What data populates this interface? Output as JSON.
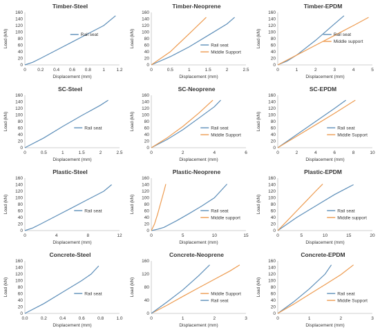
{
  "colors": {
    "rail_seat": "#5B8DB8",
    "middle_support": "#ED9A4E",
    "axis": "#bfbfbf",
    "text": "#333333"
  },
  "chart_data": [
    {
      "type": "line",
      "title": "Timber-Steel",
      "xlabel": "Displacement (mm)",
      "ylabel": "Load (kN)",
      "xlim": [
        0,
        1.2
      ],
      "ylim": [
        0,
        160
      ],
      "xticks": [
        "0",
        "0.2",
        "0.4",
        "0.6",
        "0.8",
        "1",
        "1.2"
      ],
      "yticks": [
        "0",
        "20",
        "40",
        "60",
        "80",
        "100",
        "120",
        "140",
        "160"
      ],
      "legend_position": "middle-right",
      "series": [
        {
          "name": "Rail seat",
          "color": "rail_seat",
          "x": [
            0,
            0.1,
            0.2,
            0.4,
            0.6,
            0.8,
            1.0,
            1.15
          ],
          "y": [
            0,
            8,
            20,
            45,
            70,
            95,
            120,
            150
          ]
        }
      ]
    },
    {
      "type": "line",
      "title": "Timber-Neoprene",
      "xlabel": "Displacement (mm)",
      "ylabel": "Load (kN)",
      "xlim": [
        0,
        2.5
      ],
      "ylim": [
        0,
        160
      ],
      "xticks": [
        "0",
        "0.5",
        "1",
        "1.5",
        "2",
        "2.5"
      ],
      "yticks": [
        "0",
        "20",
        "40",
        "60",
        "80",
        "100",
        "120",
        "140",
        "160"
      ],
      "legend_position": "lower-right",
      "series": [
        {
          "name": "Rail seat",
          "color": "rail_seat",
          "x": [
            0,
            0.5,
            1.0,
            1.5,
            2.0,
            2.2
          ],
          "y": [
            0,
            25,
            55,
            90,
            125,
            145
          ]
        },
        {
          "name": "Middle Support",
          "color": "middle_support",
          "x": [
            0,
            0.5,
            1.0,
            1.45
          ],
          "y": [
            0,
            40,
            95,
            145
          ]
        }
      ]
    },
    {
      "type": "line",
      "title": "Timber-EPDM",
      "xlabel": "Displacement (mm)",
      "ylabel": "Load (kN)",
      "xlim": [
        0,
        5
      ],
      "ylim": [
        0,
        160
      ],
      "xticks": [
        "0",
        "1",
        "2",
        "3",
        "4",
        "5"
      ],
      "yticks": [
        "0",
        "20",
        "40",
        "60",
        "80",
        "100",
        "120",
        "140",
        "160"
      ],
      "legend_position": "middle-right",
      "series": [
        {
          "name": "Rail seat",
          "color": "rail_seat",
          "x": [
            0,
            0.5,
            1.0,
            2.0,
            3.0,
            3.5
          ],
          "y": [
            0,
            12,
            30,
            75,
            125,
            150
          ]
        },
        {
          "name": "Middle support",
          "color": "middle_support",
          "x": [
            0,
            1,
            2,
            3,
            4,
            4.8
          ],
          "y": [
            0,
            30,
            60,
            90,
            120,
            145
          ]
        }
      ]
    },
    {
      "type": "line",
      "title": "SC-Steel",
      "xlabel": "Displacement (mm)",
      "ylabel": "Load (kN)",
      "xlim": [
        0,
        2.5
      ],
      "ylim": [
        0,
        160
      ],
      "xticks": [
        "0",
        "0.5",
        "1",
        "1.5",
        "2",
        "2.5"
      ],
      "yticks": [
        "0",
        "20",
        "40",
        "60",
        "80",
        "100",
        "120",
        "140",
        "160"
      ],
      "legend_position": "lower-right",
      "series": [
        {
          "name": "Rail seat",
          "color": "rail_seat",
          "x": [
            0,
            0.5,
            1.0,
            1.5,
            2.0,
            2.2
          ],
          "y": [
            0,
            30,
            65,
            98,
            130,
            145
          ]
        }
      ]
    },
    {
      "type": "line",
      "title": "SC-Neoprene",
      "xlabel": "Displacement (mm)",
      "ylabel": "Load (kN)",
      "xlim": [
        0,
        6
      ],
      "ylim": [
        0,
        160
      ],
      "xticks": [
        "0",
        "2",
        "4",
        "6"
      ],
      "yticks": [
        "0",
        "20",
        "40",
        "60",
        "80",
        "100",
        "120",
        "140",
        "160"
      ],
      "legend_position": "lower-right",
      "series": [
        {
          "name": "Rail seat",
          "color": "rail_seat",
          "x": [
            0,
            1,
            2,
            3,
            4,
            4.4
          ],
          "y": [
            0,
            25,
            55,
            90,
            125,
            145
          ]
        },
        {
          "name": "Middle Support",
          "color": "middle_support",
          "x": [
            0,
            1,
            2,
            3,
            3.9
          ],
          "y": [
            0,
            30,
            65,
            105,
            145
          ]
        }
      ]
    },
    {
      "type": "line",
      "title": "SC-EPDM",
      "xlabel": "Displacement (mm)",
      "ylabel": "Load (kN)",
      "xlim": [
        0,
        10
      ],
      "ylim": [
        0,
        160
      ],
      "xticks": [
        "0",
        "2",
        "4",
        "6",
        "8",
        "10"
      ],
      "yticks": [
        "0",
        "20",
        "40",
        "60",
        "80",
        "100",
        "120",
        "140",
        "160"
      ],
      "legend_position": "lower-right",
      "series": [
        {
          "name": "Rail seat",
          "color": "rail_seat",
          "x": [
            0,
            2,
            4,
            6,
            7.2
          ],
          "y": [
            0,
            40,
            80,
            120,
            145
          ]
        },
        {
          "name": "Middle Support",
          "color": "middle_support",
          "x": [
            0,
            2,
            4,
            6,
            8.2
          ],
          "y": [
            0,
            35,
            70,
            105,
            145
          ]
        }
      ]
    },
    {
      "type": "line",
      "title": "Plastic-Steel",
      "xlabel": "Displacement (mm)",
      "ylabel": "Load (kN)",
      "xlim": [
        0,
        12
      ],
      "ylim": [
        0,
        160
      ],
      "xticks": [
        "0",
        "4",
        "8",
        "12"
      ],
      "yticks": [
        "0",
        "20",
        "40",
        "60",
        "80",
        "100",
        "120",
        "140",
        "160"
      ],
      "legend_position": "lower-right",
      "series": [
        {
          "name": "Rail seat",
          "color": "rail_seat",
          "x": [
            0,
            1,
            2,
            4,
            6,
            8,
            10,
            11
          ],
          "y": [
            0,
            8,
            20,
            45,
            70,
            95,
            120,
            140
          ]
        }
      ]
    },
    {
      "type": "line",
      "title": "Plastic-Neoprene",
      "xlabel": "Displacement (mm)",
      "ylabel": "Load (kN)",
      "xlim": [
        0,
        15
      ],
      "ylim": [
        0,
        160
      ],
      "xticks": [
        "0",
        "5",
        "10",
        "15"
      ],
      "yticks": [
        "0",
        "20",
        "40",
        "60",
        "80",
        "100",
        "120",
        "140",
        "160"
      ],
      "legend_position": "lower-right",
      "series": [
        {
          "name": "Rail seat",
          "color": "rail_seat",
          "x": [
            0,
            1,
            2,
            4,
            6,
            8,
            10,
            12
          ],
          "y": [
            0,
            4,
            10,
            30,
            52,
            75,
            100,
            142
          ]
        },
        {
          "name": "Middle support",
          "color": "middle_support",
          "x": [
            0,
            0.5,
            1.0,
            1.5,
            2.0,
            2.3
          ],
          "y": [
            0,
            20,
            50,
            85,
            120,
            142
          ]
        }
      ]
    },
    {
      "type": "line",
      "title": "Plastic-EPDM",
      "xlabel": "Displacement (mm)",
      "ylabel": "Load (kN)",
      "xlim": [
        0,
        20
      ],
      "ylim": [
        0,
        160
      ],
      "xticks": [
        "0",
        "5",
        "10",
        "15",
        "20"
      ],
      "yticks": [
        "0",
        "20",
        "40",
        "60",
        "80",
        "100",
        "120",
        "140",
        "160"
      ],
      "legend_position": "lower-right",
      "series": [
        {
          "name": "Rail seat",
          "color": "rail_seat",
          "x": [
            0,
            2,
            4,
            8,
            12,
            16
          ],
          "y": [
            0,
            20,
            40,
            75,
            110,
            140
          ]
        },
        {
          "name": "Middle support",
          "color": "middle_support",
          "x": [
            0,
            2,
            4,
            6,
            8,
            9.5
          ],
          "y": [
            0,
            30,
            60,
            90,
            120,
            142
          ]
        }
      ]
    },
    {
      "type": "line",
      "title": "Concrete-Steel",
      "xlabel": "Displacement (mm)",
      "ylabel": "Load (kN)",
      "xlim": [
        0,
        1.0
      ],
      "ylim": [
        0,
        160
      ],
      "xticks": [
        "0.0",
        "0.2",
        "0.4",
        "0.6",
        "0.8",
        "1.0"
      ],
      "yticks": [
        "0",
        "20",
        "40",
        "60",
        "80",
        "100",
        "120",
        "140",
        "160"
      ],
      "legend_position": "lower-right",
      "series": [
        {
          "name": "Rail seat",
          "color": "rail_seat",
          "x": [
            0,
            0.2,
            0.4,
            0.6,
            0.7,
            0.78
          ],
          "y": [
            0,
            30,
            65,
            100,
            120,
            145
          ]
        }
      ]
    },
    {
      "type": "line",
      "title": "Concrete-Neoprene",
      "xlabel": "Displacement (mm)",
      "ylabel": "Load (kN)",
      "xlim": [
        0,
        3
      ],
      "ylim": [
        0,
        160
      ],
      "xticks": [
        "0",
        "1",
        "2",
        "3"
      ],
      "yticks": [
        "0",
        "40",
        "80",
        "120",
        "160"
      ],
      "legend_position": "lower-right",
      "series": [
        {
          "name": "Middle Support",
          "color": "middle_support",
          "x": [
            0,
            0.5,
            1.0,
            1.5,
            2.0,
            2.5,
            2.8
          ],
          "y": [
            0,
            25,
            52,
            78,
            104,
            130,
            148
          ]
        },
        {
          "name": "Rail seat",
          "color": "rail_seat",
          "x": [
            0,
            0.5,
            1.0,
            1.5,
            1.85
          ],
          "y": [
            0,
            35,
            72,
            115,
            148
          ]
        }
      ]
    },
    {
      "type": "line",
      "title": "Concrete-EPDM",
      "xlabel": "Displacement (mm)",
      "ylabel": "Load (kN)",
      "xlim": [
        0,
        3
      ],
      "ylim": [
        0,
        160
      ],
      "xticks": [
        "0",
        "1",
        "2",
        "3"
      ],
      "yticks": [
        "0",
        "20",
        "40",
        "60",
        "80",
        "100",
        "120",
        "140",
        "160"
      ],
      "legend_position": "lower-right",
      "series": [
        {
          "name": "Rail seat",
          "color": "rail_seat",
          "x": [
            0,
            0.5,
            1.0,
            1.5,
            1.7
          ],
          "y": [
            0,
            35,
            75,
            120,
            148
          ]
        },
        {
          "name": "Middle Support",
          "color": "middle_support",
          "x": [
            0,
            0.5,
            1.0,
            1.5,
            2.0,
            2.4
          ],
          "y": [
            0,
            28,
            58,
            88,
            118,
            148
          ]
        }
      ]
    }
  ]
}
